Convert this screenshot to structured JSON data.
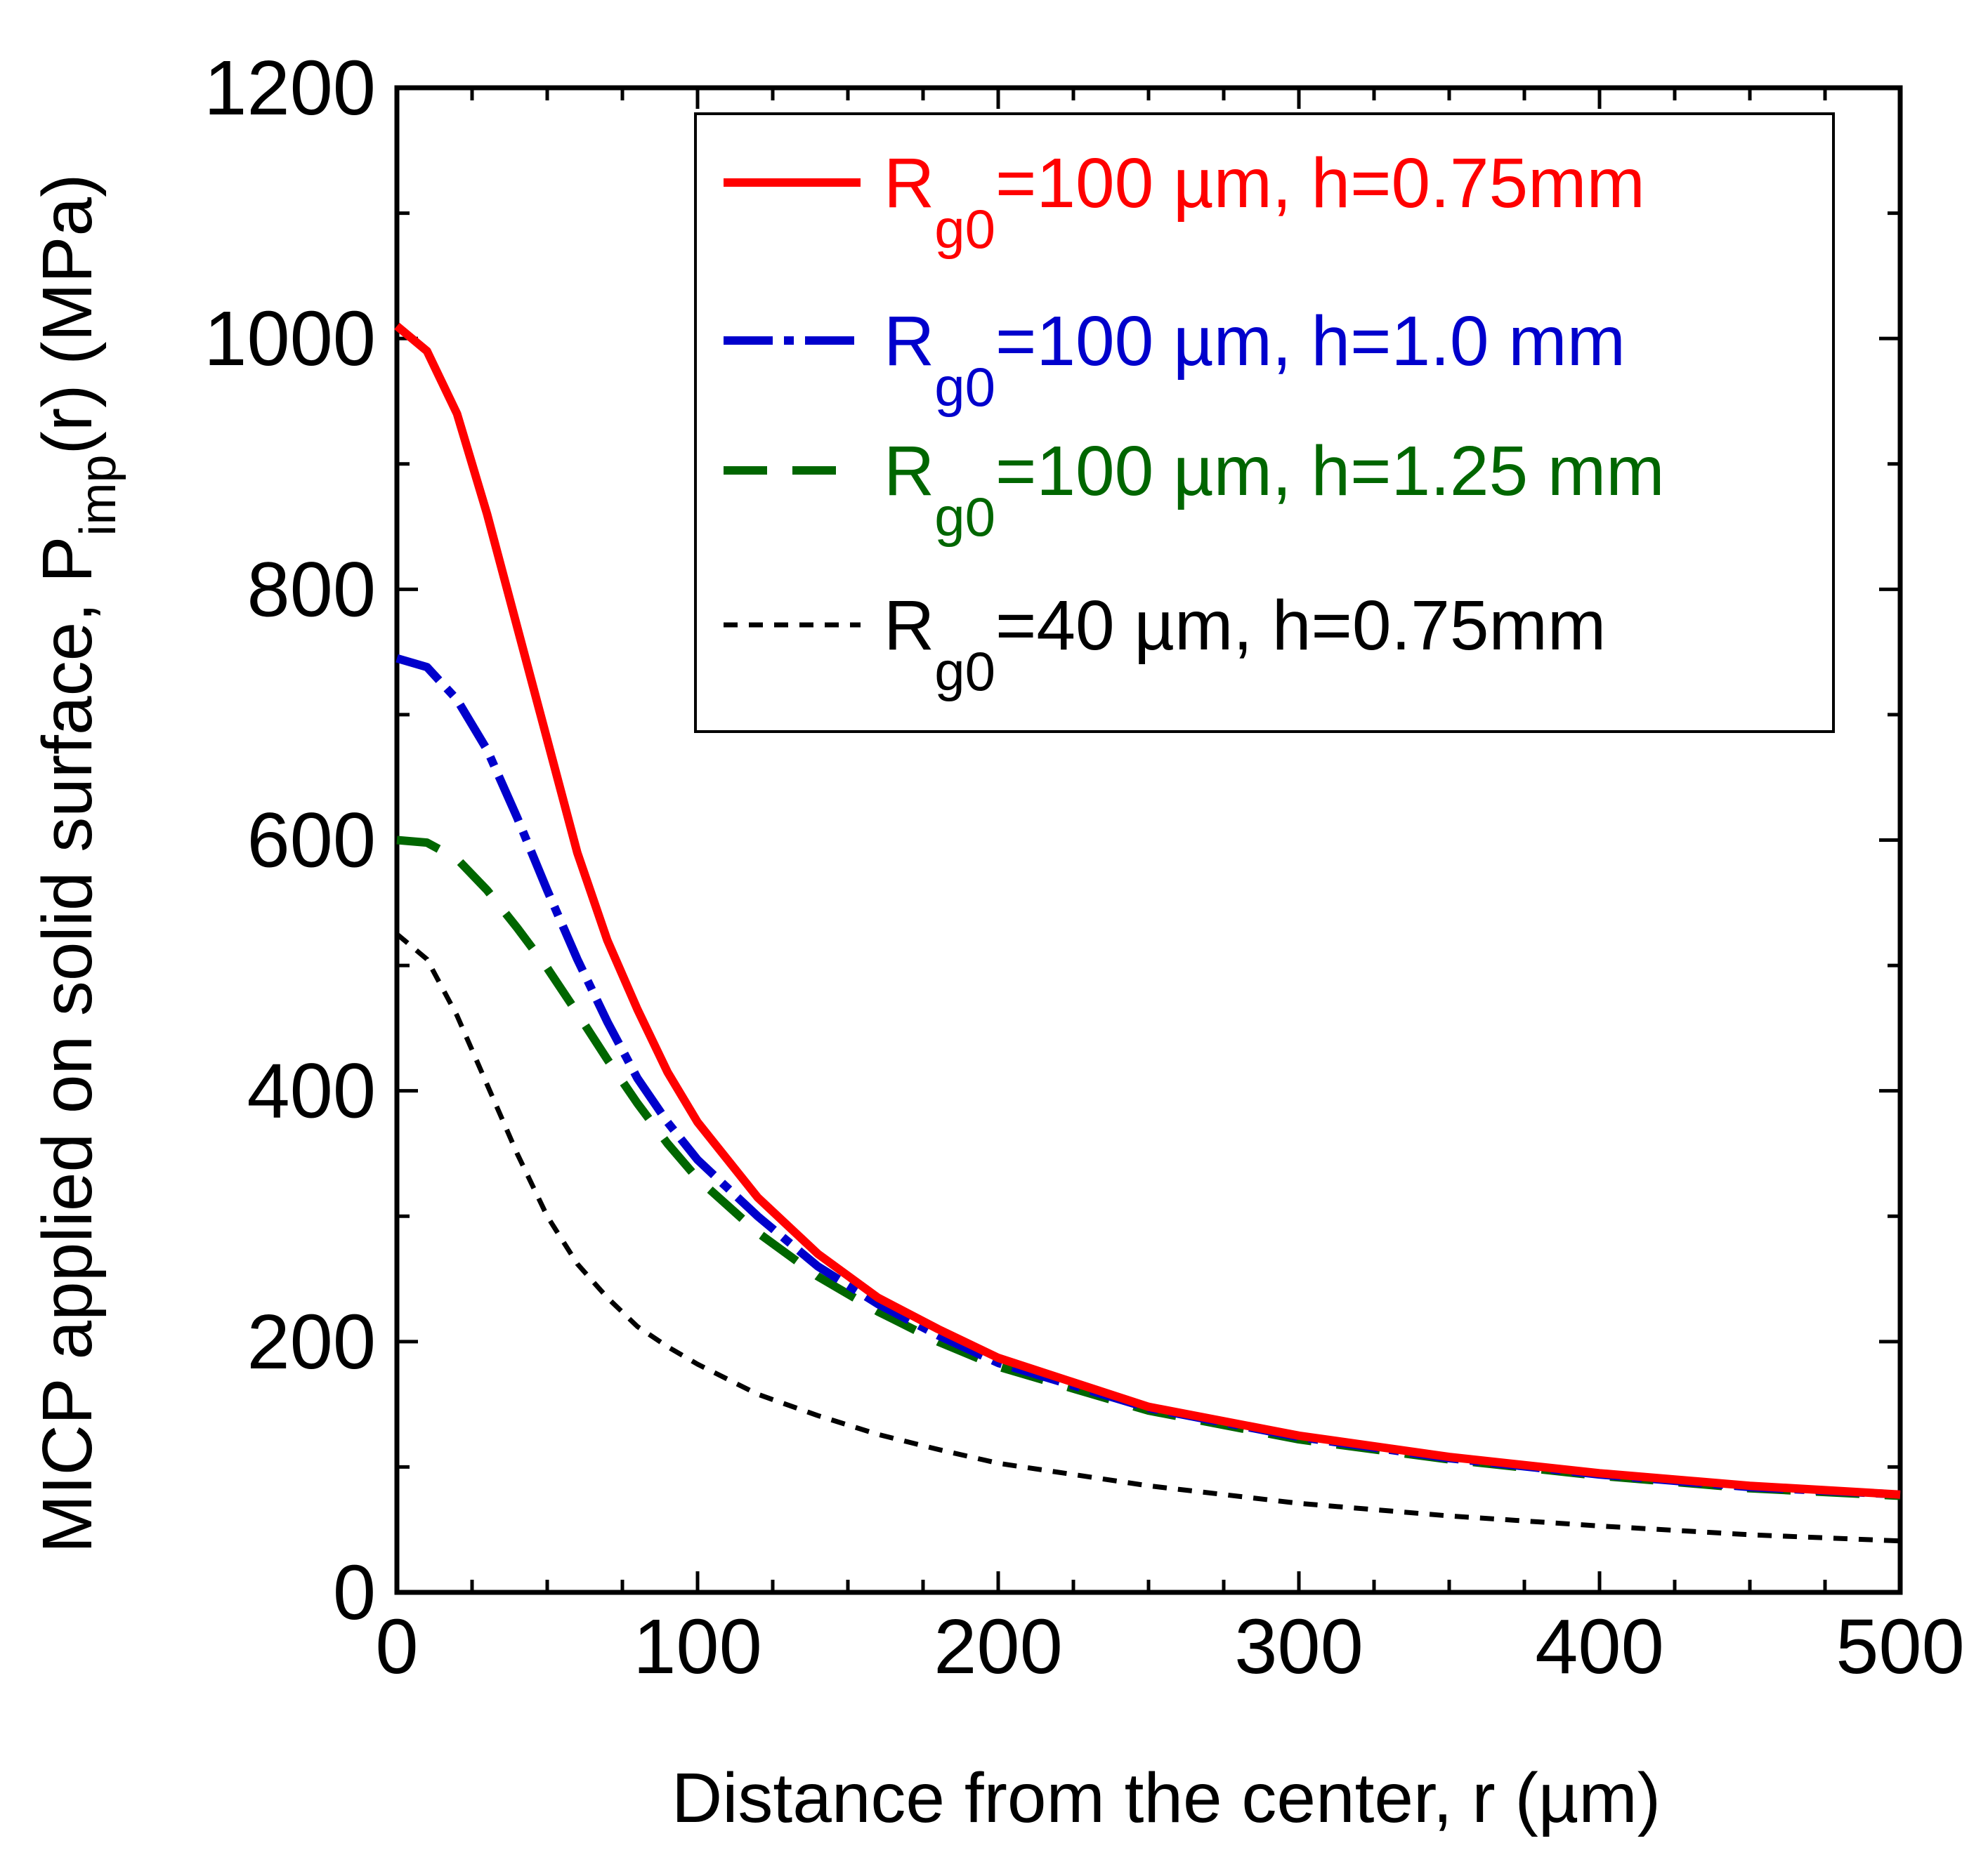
{
  "chart_data": {
    "type": "line",
    "title": "",
    "xlabel": "Distance from the center, r (µm)",
    "ylabel": {
      "prefix": "MICP applied on solid surface, P",
      "subscript": "imp",
      "suffix": "(r) (MPa)"
    },
    "xlim": [
      0,
      500
    ],
    "ylim": [
      0,
      1200
    ],
    "xticks": [
      0,
      100,
      200,
      300,
      400,
      500
    ],
    "yticks": [
      0,
      200,
      400,
      600,
      800,
      1000,
      1200
    ],
    "grid": false,
    "legend_position": "top-right",
    "series": [
      {
        "name": "R_g0=100 µm, h=0.75mm",
        "legend": {
          "main": "R",
          "sub": "g0",
          "rest": "=100 µm, h=0.75mm"
        },
        "color": "#ff0000",
        "style": "solid",
        "x": [
          0,
          10,
          20,
          30,
          40,
          50,
          60,
          70,
          80,
          90,
          100,
          120,
          140,
          160,
          180,
          200,
          250,
          300,
          350,
          400,
          450,
          500
        ],
        "y": [
          1010,
          990,
          940,
          860,
          770,
          680,
          590,
          520,
          465,
          415,
          375,
          315,
          270,
          235,
          210,
          187,
          148,
          125,
          108,
          95,
          85,
          78
        ]
      },
      {
        "name": "R_g0=100 µm, h=1.0 mm",
        "legend": {
          "main": "R",
          "sub": "g0",
          "rest": "=100 µm, h=1.0 mm"
        },
        "color": "#0000cc",
        "style": "dashdot",
        "x": [
          0,
          10,
          20,
          30,
          40,
          50,
          60,
          70,
          80,
          90,
          100,
          120,
          140,
          160,
          180,
          200,
          250,
          300,
          350,
          400,
          450,
          500
        ],
        "y": [
          745,
          738,
          712,
          672,
          618,
          560,
          505,
          455,
          410,
          375,
          345,
          300,
          260,
          230,
          205,
          183,
          147,
          124,
          107,
          94,
          84,
          78
        ]
      },
      {
        "name": "R_g0=100 µm, h=1.25 mm",
        "legend": {
          "main": "R",
          "sub": "g0",
          "rest": "=100 µm, h=1.25 mm"
        },
        "color": "#006600",
        "style": "dashed",
        "x": [
          0,
          10,
          20,
          30,
          40,
          50,
          60,
          70,
          80,
          90,
          100,
          120,
          140,
          160,
          180,
          200,
          250,
          300,
          350,
          400,
          450,
          500
        ],
        "y": [
          600,
          598,
          585,
          560,
          530,
          498,
          462,
          425,
          390,
          358,
          330,
          287,
          252,
          224,
          200,
          180,
          145,
          122,
          106,
          93,
          83,
          77
        ]
      },
      {
        "name": "R_g0=40 µm, h=0.75mm",
        "legend": {
          "main": "R",
          "sub": "g0",
          "rest": "=40 µm, h=0.75mm"
        },
        "color": "#000000",
        "style": "dotted",
        "x": [
          0,
          10,
          20,
          30,
          40,
          50,
          60,
          70,
          80,
          90,
          100,
          120,
          140,
          160,
          180,
          200,
          250,
          300,
          350,
          400,
          450,
          500
        ],
        "y": [
          525,
          505,
          460,
          405,
          350,
          300,
          262,
          235,
          212,
          196,
          182,
          158,
          141,
          126,
          114,
          103,
          85,
          71,
          61,
          53,
          46,
          41
        ]
      }
    ]
  }
}
